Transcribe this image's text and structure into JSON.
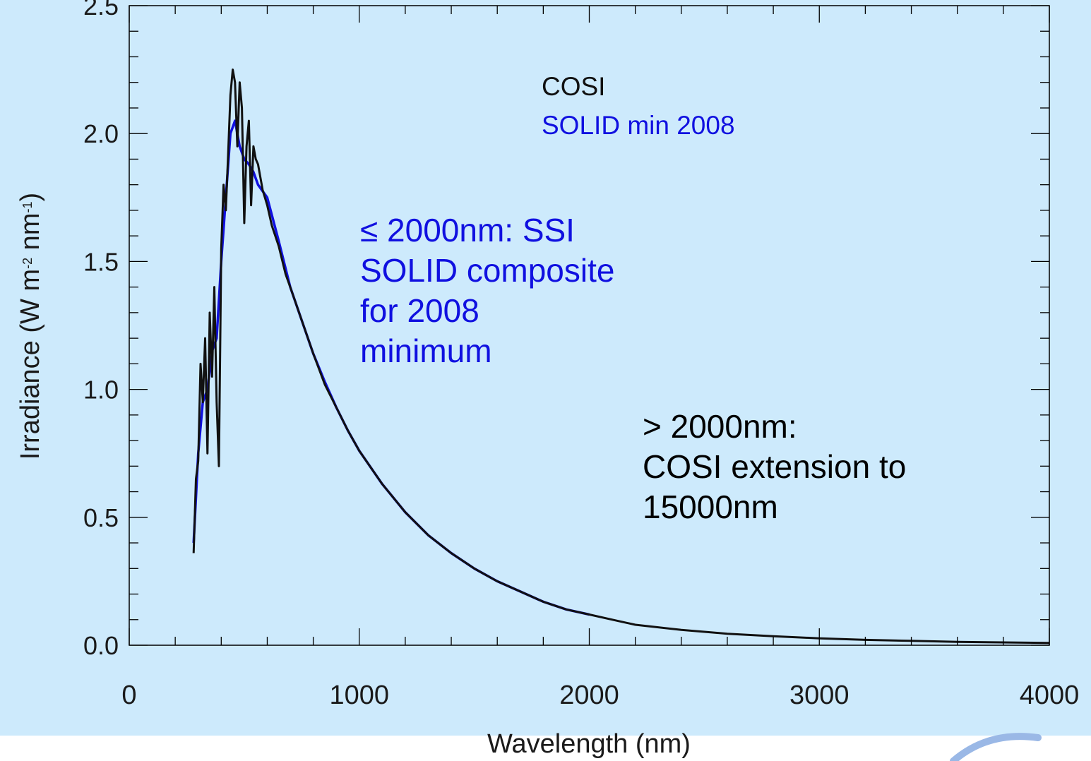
{
  "chart_data": {
    "type": "line",
    "xlabel": "Wavelength (nm)",
    "ylabel": {
      "prefix": "Irradiance  (W m",
      "sup1": "-2",
      "mid": " nm",
      "sup2": "-1",
      "suffix": ")"
    },
    "xlim": [
      0,
      4000
    ],
    "ylim": [
      0,
      2.5
    ],
    "x_ticks": [
      0,
      1000,
      2000,
      3000,
      4000
    ],
    "x_tick_labels": [
      "0",
      "1000",
      "2000",
      "3000",
      "4000"
    ],
    "y_ticks": [
      0,
      0.5,
      1.0,
      1.5,
      2.0,
      2.5
    ],
    "y_tick_labels": [
      "0.0",
      "0.5",
      "1.0",
      "1.5",
      "2.0",
      "2.5"
    ],
    "grid": false,
    "legend": {
      "placement": "top-center",
      "entries": [
        {
          "label": "COSI",
          "color": "#111111"
        },
        {
          "label": "SOLID min 2008",
          "color": "#1010e0"
        }
      ]
    },
    "annotations": [
      {
        "lines": [
          "≤ 2000nm: SSI",
          "SOLID composite",
          "for 2008",
          "minimum"
        ],
        "color": "#1010e0"
      },
      {
        "lines": [
          "> 2000nm:",
          "COSI extension to",
          "15000nm"
        ],
        "color": "#000000"
      }
    ],
    "series": [
      {
        "name": "SOLID min 2008",
        "color": "#1010e0",
        "x": [
          280,
          300,
          320,
          340,
          360,
          380,
          400,
          420,
          440,
          460,
          480,
          500,
          520,
          540,
          560,
          600,
          650,
          700,
          750,
          800,
          850,
          900,
          950,
          1000,
          1100,
          1200,
          1300,
          1400,
          1500,
          1600,
          1700,
          1800,
          1900,
          2000
        ],
        "y": [
          0.4,
          0.75,
          0.95,
          1.0,
          1.15,
          1.2,
          1.5,
          1.75,
          2.0,
          2.05,
          1.95,
          1.9,
          1.88,
          1.85,
          1.8,
          1.75,
          1.58,
          1.4,
          1.27,
          1.14,
          1.03,
          0.93,
          0.84,
          0.76,
          0.63,
          0.52,
          0.43,
          0.36,
          0.3,
          0.25,
          0.21,
          0.17,
          0.14,
          0.12
        ]
      },
      {
        "name": "COSI",
        "color": "#111111",
        "x": [
          280,
          290,
          300,
          310,
          320,
          330,
          340,
          350,
          360,
          370,
          380,
          390,
          400,
          410,
          420,
          430,
          440,
          450,
          460,
          470,
          480,
          490,
          500,
          510,
          520,
          530,
          540,
          550,
          560,
          580,
          600,
          620,
          650,
          680,
          700,
          750,
          800,
          850,
          900,
          950,
          1000,
          1100,
          1200,
          1300,
          1400,
          1500,
          1600,
          1700,
          1800,
          1900,
          2000,
          2100,
          2200,
          2400,
          2600,
          2800,
          3000,
          3200,
          3400,
          3600,
          3800,
          4000
        ],
        "y": [
          0.36,
          0.65,
          0.72,
          1.1,
          0.95,
          1.2,
          0.75,
          1.3,
          1.05,
          1.4,
          0.95,
          0.7,
          1.55,
          1.8,
          1.7,
          1.92,
          2.15,
          2.25,
          2.2,
          1.95,
          2.2,
          2.1,
          1.65,
          1.95,
          2.05,
          1.72,
          1.95,
          1.9,
          1.88,
          1.78,
          1.72,
          1.64,
          1.56,
          1.45,
          1.4,
          1.27,
          1.14,
          1.02,
          0.93,
          0.84,
          0.76,
          0.63,
          0.52,
          0.43,
          0.36,
          0.3,
          0.25,
          0.21,
          0.17,
          0.14,
          0.12,
          0.1,
          0.08,
          0.06,
          0.045,
          0.035,
          0.027,
          0.021,
          0.017,
          0.013,
          0.011,
          0.009
        ]
      }
    ]
  }
}
